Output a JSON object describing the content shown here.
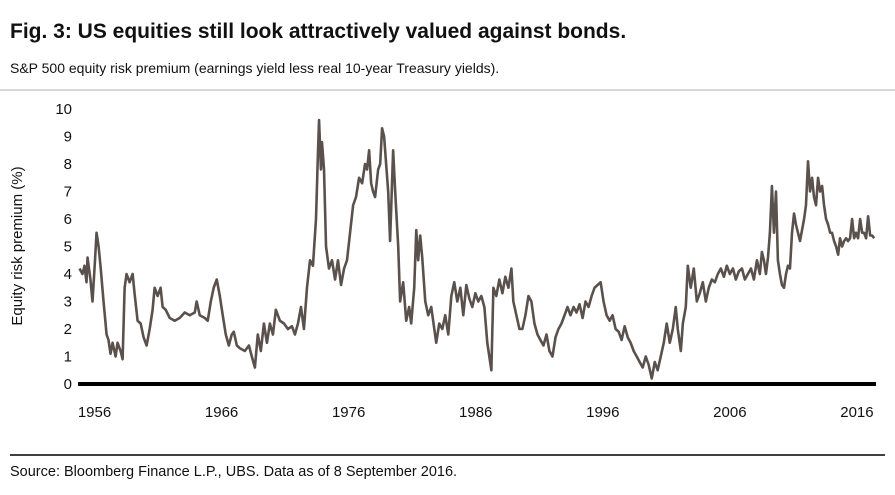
{
  "chart_data": {
    "type": "line",
    "title": "Fig. 3: US equities still look attractively valued against bonds.",
    "subtitle": "S&P 500 equity risk premium (earnings yield less real 10-year Treasury yields).",
    "y_label": "Equity risk premium (%)",
    "source": "Source: Bloomberg Finance L.P., UBS. Data as of 8 September 2016.",
    "color": "#5b514c",
    "grid": false,
    "xlim": [
      1954.7,
      2017.5
    ],
    "xticks": [
      1956,
      1966,
      1976,
      1986,
      1996,
      2006,
      2016
    ],
    "ylim": [
      0,
      10
    ],
    "yticks": [
      0,
      1,
      2,
      3,
      4,
      5,
      6,
      7,
      8,
      9,
      10
    ],
    "x": [
      1954.82,
      1955.05,
      1955.21,
      1955.37,
      1955.45,
      1955.68,
      1955.84,
      1956.0,
      1956.16,
      1956.32,
      1956.47,
      1956.71,
      1956.95,
      1957.1,
      1957.26,
      1957.42,
      1957.66,
      1957.81,
      1958.05,
      1958.21,
      1958.37,
      1958.52,
      1958.76,
      1959.0,
      1959.15,
      1959.39,
      1959.63,
      1959.86,
      1960.1,
      1960.34,
      1960.57,
      1960.73,
      1960.97,
      1961.2,
      1961.36,
      1961.6,
      1961.92,
      1962.31,
      1962.7,
      1963.1,
      1963.49,
      1963.89,
      1964.04,
      1964.28,
      1964.68,
      1964.91,
      1965.15,
      1965.38,
      1965.62,
      1965.86,
      1966.09,
      1966.33,
      1966.57,
      1966.8,
      1966.96,
      1967.2,
      1967.44,
      1967.83,
      1968.15,
      1968.38,
      1968.62,
      1968.85,
      1969.09,
      1969.33,
      1969.57,
      1969.8,
      1970.04,
      1970.27,
      1970.59,
      1970.91,
      1971.22,
      1971.54,
      1971.77,
      1972.01,
      1972.25,
      1972.48,
      1972.72,
      1972.96,
      1973.19,
      1973.43,
      1973.59,
      1973.67,
      1973.82,
      1973.9,
      1974.06,
      1974.22,
      1974.45,
      1974.69,
      1974.93,
      1975.16,
      1975.4,
      1975.64,
      1975.87,
      1976.11,
      1976.35,
      1976.58,
      1976.82,
      1977.06,
      1977.29,
      1977.45,
      1977.61,
      1977.77,
      1977.92,
      1978.08,
      1978.32,
      1978.48,
      1978.63,
      1978.79,
      1978.95,
      1979.11,
      1979.26,
      1979.5,
      1979.66,
      1979.9,
      1980.05,
      1980.29,
      1980.53,
      1980.76,
      1980.92,
      1981.16,
      1981.32,
      1981.47,
      1981.63,
      1981.79,
      1982.03,
      1982.26,
      1982.5,
      1982.74,
      1982.89,
      1983.13,
      1983.37,
      1983.6,
      1983.84,
      1984.08,
      1984.31,
      1984.55,
      1984.79,
      1985.02,
      1985.26,
      1985.5,
      1985.73,
      1985.97,
      1986.2,
      1986.44,
      1986.68,
      1986.91,
      1987.07,
      1987.23,
      1987.39,
      1987.62,
      1987.86,
      1988.1,
      1988.33,
      1988.57,
      1988.81,
      1988.96,
      1989.2,
      1989.44,
      1989.67,
      1989.91,
      1990.15,
      1990.38,
      1990.62,
      1990.86,
      1991.09,
      1991.33,
      1991.57,
      1991.8,
      1992.04,
      1992.28,
      1992.51,
      1992.75,
      1992.99,
      1993.22,
      1993.46,
      1993.7,
      1993.93,
      1994.17,
      1994.41,
      1994.64,
      1994.88,
      1995.12,
      1995.35,
      1995.59,
      1995.83,
      1996.06,
      1996.3,
      1996.54,
      1996.77,
      1997.01,
      1997.25,
      1997.48,
      1997.72,
      1997.96,
      1998.19,
      1998.43,
      1998.67,
      1998.9,
      1999.14,
      1999.38,
      1999.61,
      1999.85,
      2000.09,
      2000.32,
      2000.56,
      2000.8,
      2001.03,
      2001.27,
      2001.51,
      2001.74,
      2001.9,
      2002.14,
      2002.3,
      2002.53,
      2002.69,
      2002.92,
      2003.16,
      2003.4,
      2003.63,
      2003.87,
      2004.11,
      2004.34,
      2004.58,
      2004.82,
      2005.05,
      2005.29,
      2005.53,
      2005.76,
      2006.0,
      2006.24,
      2006.47,
      2006.71,
      2006.95,
      2007.18,
      2007.42,
      2007.66,
      2007.89,
      2008.13,
      2008.36,
      2008.52,
      2008.68,
      2008.84,
      2009.0,
      2009.15,
      2009.31,
      2009.47,
      2009.63,
      2009.78,
      2009.94,
      2010.1,
      2010.26,
      2010.42,
      2010.57,
      2010.73,
      2010.89,
      2011.05,
      2011.2,
      2011.36,
      2011.52,
      2011.68,
      2011.84,
      2011.99,
      2012.15,
      2012.31,
      2012.47,
      2012.62,
      2012.78,
      2012.94,
      2013.1,
      2013.26,
      2013.41,
      2013.57,
      2013.73,
      2013.89,
      2014.04,
      2014.2,
      2014.36,
      2014.52,
      2014.67,
      2014.83,
      2014.99,
      2015.15,
      2015.3,
      2015.46,
      2015.62,
      2015.78,
      2015.93,
      2016.09,
      2016.25,
      2016.41,
      2016.56,
      2016.72,
      2016.88,
      2017.04,
      2017.2,
      2017.36
    ],
    "values": [
      4.2,
      4.0,
      4.3,
      3.7,
      4.6,
      3.8,
      3.0,
      4.2,
      5.5,
      5.0,
      4.3,
      3.0,
      1.8,
      1.6,
      1.1,
      1.5,
      1.0,
      1.5,
      1.2,
      0.9,
      3.5,
      4.0,
      3.7,
      4.0,
      3.3,
      2.3,
      2.2,
      1.7,
      1.4,
      2.0,
      2.7,
      3.5,
      3.2,
      3.5,
      2.8,
      2.7,
      2.4,
      2.3,
      2.4,
      2.6,
      2.5,
      2.6,
      3.0,
      2.5,
      2.4,
      2.3,
      3.0,
      3.5,
      3.8,
      3.2,
      2.5,
      1.8,
      1.4,
      1.8,
      1.9,
      1.4,
      1.3,
      1.2,
      1.4,
      1.0,
      0.6,
      1.8,
      1.2,
      2.2,
      1.5,
      2.2,
      1.8,
      2.7,
      2.3,
      2.2,
      2.0,
      2.1,
      1.8,
      2.2,
      2.8,
      2.0,
      3.5,
      4.5,
      4.3,
      6.0,
      8.5,
      9.6,
      7.8,
      8.8,
      7.8,
      5.0,
      4.2,
      4.5,
      3.8,
      4.5,
      3.6,
      4.2,
      4.5,
      5.5,
      6.5,
      6.8,
      7.5,
      7.3,
      8.0,
      7.8,
      8.5,
      7.3,
      7.0,
      6.8,
      7.8,
      8.0,
      9.3,
      9.0,
      8.0,
      7.0,
      5.2,
      8.5,
      7.0,
      5.0,
      3.0,
      3.7,
      2.3,
      2.8,
      2.2,
      3.5,
      5.6,
      4.5,
      5.4,
      4.6,
      3.0,
      2.5,
      2.8,
      2.0,
      1.5,
      2.2,
      2.0,
      2.5,
      1.8,
      3.2,
      3.7,
      3.0,
      3.5,
      2.5,
      3.6,
      3.1,
      2.8,
      3.3,
      3.0,
      3.2,
      2.8,
      1.5,
      1.0,
      0.5,
      3.5,
      3.2,
      3.8,
      3.3,
      3.9,
      3.5,
      4.2,
      3.0,
      2.5,
      2.0,
      2.0,
      2.5,
      3.2,
      3.0,
      2.2,
      1.8,
      1.6,
      1.4,
      1.8,
      1.2,
      1.0,
      1.7,
      2.0,
      2.2,
      2.5,
      2.8,
      2.5,
      2.8,
      2.6,
      2.9,
      2.4,
      3.0,
      2.8,
      3.2,
      3.5,
      3.6,
      3.7,
      3.0,
      2.5,
      2.3,
      2.5,
      2.0,
      1.9,
      1.6,
      2.1,
      1.7,
      1.5,
      1.2,
      1.0,
      0.8,
      0.6,
      1.0,
      0.7,
      0.2,
      0.8,
      0.5,
      1.0,
      1.5,
      2.2,
      1.5,
      2.0,
      2.8,
      2.0,
      1.2,
      2.2,
      2.8,
      4.3,
      3.5,
      4.2,
      3.0,
      3.3,
      3.7,
      3.0,
      3.5,
      3.8,
      3.7,
      4.0,
      4.2,
      3.9,
      4.3,
      4.0,
      4.2,
      3.8,
      4.1,
      4.2,
      3.8,
      4.0,
      4.2,
      3.8,
      4.5,
      4.0,
      4.8,
      4.5,
      4.0,
      4.6,
      5.5,
      7.2,
      5.5,
      7.0,
      4.5,
      4.0,
      3.6,
      3.5,
      4.0,
      4.3,
      4.2,
      5.5,
      6.2,
      5.8,
      5.5,
      5.2,
      5.6,
      6.0,
      6.5,
      8.1,
      7.0,
      7.5,
      6.8,
      6.5,
      7.5,
      7.0,
      7.2,
      6.5,
      6.0,
      5.8,
      5.5,
      5.5,
      5.2,
      5.0,
      4.7,
      5.3,
      5.0,
      5.2,
      5.3,
      5.2,
      5.3,
      6.0,
      5.3,
      5.5,
      5.3,
      6.0,
      5.5,
      5.5,
      5.3,
      6.1,
      5.4,
      5.4,
      5.3
    ]
  }
}
